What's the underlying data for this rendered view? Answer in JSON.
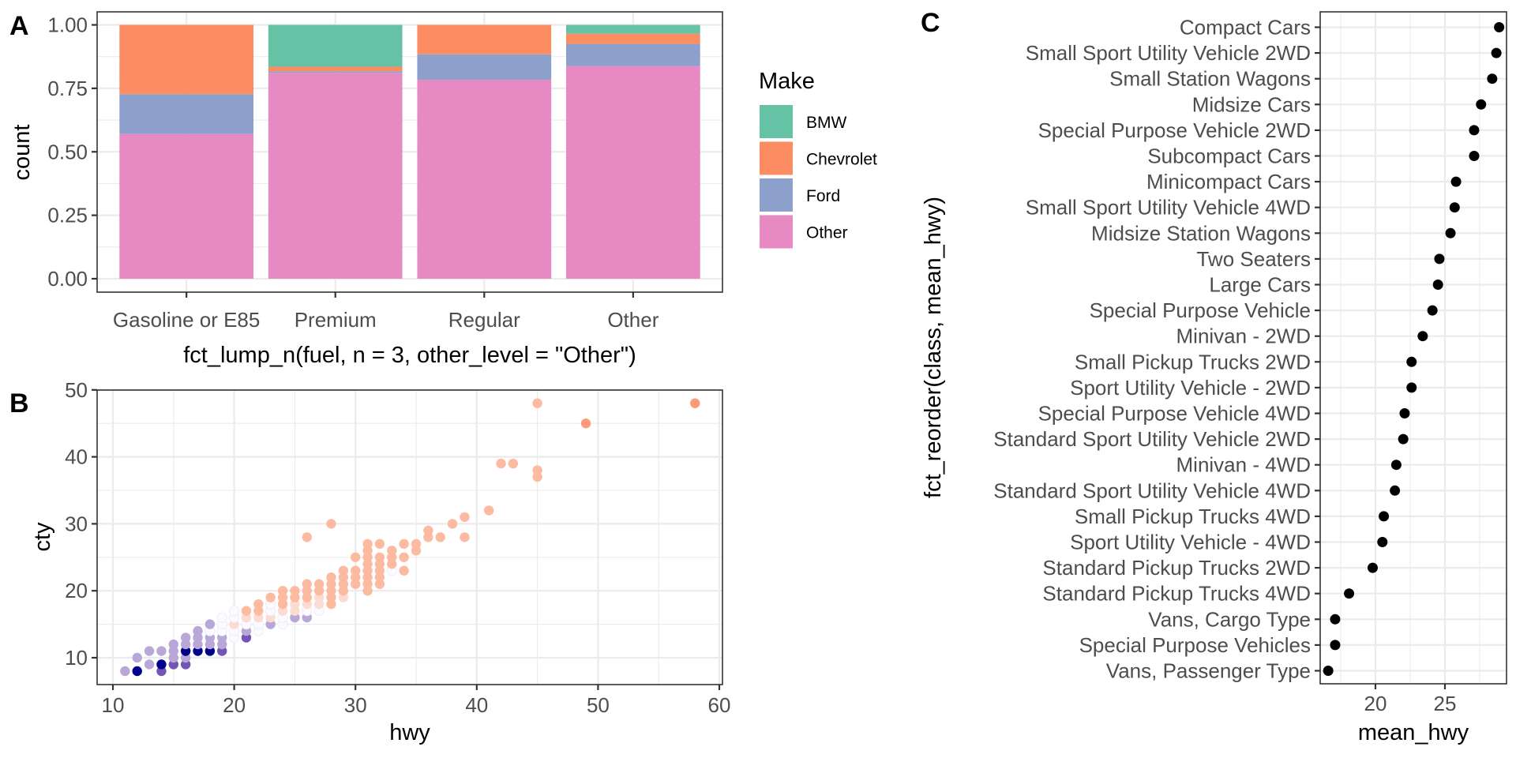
{
  "chart_data": [
    {
      "panel": "A",
      "type": "bar",
      "stacked": "fill",
      "title": "",
      "xlabel": "fct_lump_n(fuel, n = 3, other_level = \"Other\")",
      "ylabel": "count",
      "ylim": [
        0,
        1
      ],
      "yticks": [
        "0.00",
        "0.25",
        "0.50",
        "0.75",
        "1.00"
      ],
      "ytick_values": [
        0,
        0.25,
        0.5,
        0.75,
        1.0
      ],
      "categories": [
        "Gasoline or E85",
        "Premium",
        "Regular",
        "Other"
      ],
      "grid": true,
      "legend": {
        "title": "Make",
        "position": "right",
        "entries": [
          {
            "name": "BMW",
            "color": "#66c2a5"
          },
          {
            "name": "Chevrolet",
            "color": "#fc8d62"
          },
          {
            "name": "Ford",
            "color": "#8da0cb"
          },
          {
            "name": "Other",
            "color": "#e78ac3"
          }
        ]
      },
      "series": [
        {
          "name": "BMW",
          "values": [
            0.0,
            0.165,
            0.0,
            0.035
          ]
        },
        {
          "name": "Chevrolet",
          "values": [
            0.273,
            0.018,
            0.116,
            0.04
          ]
        },
        {
          "name": "Ford",
          "values": [
            0.157,
            0.006,
            0.1,
            0.087
          ]
        },
        {
          "name": "Other",
          "values": [
            0.57,
            0.811,
            0.784,
            0.838
          ]
        }
      ]
    },
    {
      "panel": "B",
      "type": "scatter",
      "xlabel": "hwy",
      "ylabel": "cty",
      "xlim": [
        9,
        60.5
      ],
      "ylim": [
        6,
        50
      ],
      "xticks": [
        10,
        20,
        30,
        40,
        50,
        60
      ],
      "yticks": [
        10,
        20,
        30,
        40,
        50
      ],
      "grid": true,
      "color_legend": "none",
      "points": [
        {
          "x": 11,
          "y": 8,
          "c": "#b9a7d8"
        },
        {
          "x": 12,
          "y": 8,
          "c": "#00008b"
        },
        {
          "x": 12,
          "y": 10,
          "c": "#b9a7d8"
        },
        {
          "x": 13,
          "y": 9,
          "c": "#b9a7d8"
        },
        {
          "x": 13,
          "y": 11,
          "c": "#b9a7d8"
        },
        {
          "x": 14,
          "y": 8,
          "c": "#7355b5"
        },
        {
          "x": 14,
          "y": 9,
          "c": "#00008b"
        },
        {
          "x": 14,
          "y": 11,
          "c": "#b9a7d8"
        },
        {
          "x": 15,
          "y": 9,
          "c": "#7355b5"
        },
        {
          "x": 15,
          "y": 10,
          "c": "#b9a7d8"
        },
        {
          "x": 15,
          "y": 11,
          "c": "#b9a7d8"
        },
        {
          "x": 15,
          "y": 12,
          "c": "#b9a7d8"
        },
        {
          "x": 16,
          "y": 9,
          "c": "#7355b5"
        },
        {
          "x": 16,
          "y": 10,
          "c": "#b9a7d8"
        },
        {
          "x": 16,
          "y": 11,
          "c": "#00008b"
        },
        {
          "x": 16,
          "y": 12,
          "c": "#b9a7d8"
        },
        {
          "x": 16,
          "y": 13,
          "c": "#b9a7d8"
        },
        {
          "x": 17,
          "y": 11,
          "c": "#00008b"
        },
        {
          "x": 17,
          "y": 12,
          "c": "#b9a7d8"
        },
        {
          "x": 17,
          "y": 13,
          "c": "#b9a7d8"
        },
        {
          "x": 17,
          "y": 14,
          "c": "#b9a7d8"
        },
        {
          "x": 18,
          "y": 11,
          "c": "#00008b"
        },
        {
          "x": 18,
          "y": 12,
          "c": "#b9a7d8"
        },
        {
          "x": 18,
          "y": 13,
          "c": "#b9a7d8"
        },
        {
          "x": 18,
          "y": 14,
          "c": "#fbfaff"
        },
        {
          "x": 18,
          "y": 15,
          "c": "#b9a7d8"
        },
        {
          "x": 19,
          "y": 11,
          "c": "#7355b5"
        },
        {
          "x": 19,
          "y": 12,
          "c": "#b9a7d8"
        },
        {
          "x": 19,
          "y": 13,
          "c": "#b9a7d8"
        },
        {
          "x": 19,
          "y": 14,
          "c": "#fbfaff"
        },
        {
          "x": 19,
          "y": 15,
          "c": "#fbfaff"
        },
        {
          "x": 19,
          "y": 16,
          "c": "#fbfaff"
        },
        {
          "x": 20,
          "y": 13,
          "c": "#fbfaff"
        },
        {
          "x": 20,
          "y": 14,
          "c": "#fbfaff"
        },
        {
          "x": 20,
          "y": 15,
          "c": "#fcdcd2"
        },
        {
          "x": 20,
          "y": 16,
          "c": "#fbfaff"
        },
        {
          "x": 20,
          "y": 17,
          "c": "#fbfaff"
        },
        {
          "x": 21,
          "y": 13,
          "c": "#7355b5"
        },
        {
          "x": 21,
          "y": 14,
          "c": "#b9a7d8"
        },
        {
          "x": 21,
          "y": 15,
          "c": "#fbfaff"
        },
        {
          "x": 21,
          "y": 16,
          "c": "#fcdcd2"
        },
        {
          "x": 21,
          "y": 17,
          "c": "#fcbba1"
        },
        {
          "x": 22,
          "y": 14,
          "c": "#fbfaff"
        },
        {
          "x": 22,
          "y": 15,
          "c": "#fbfaff"
        },
        {
          "x": 22,
          "y": 16,
          "c": "#fcdcd2"
        },
        {
          "x": 22,
          "y": 17,
          "c": "#fcbba1"
        },
        {
          "x": 22,
          "y": 18,
          "c": "#fcbba1"
        },
        {
          "x": 23,
          "y": 15,
          "c": "#b9a7d8"
        },
        {
          "x": 23,
          "y": 16,
          "c": "#fcdcd2"
        },
        {
          "x": 23,
          "y": 17,
          "c": "#fbfaff"
        },
        {
          "x": 23,
          "y": 18,
          "c": "#fbfaff"
        },
        {
          "x": 23,
          "y": 19,
          "c": "#fcbba1"
        },
        {
          "x": 24,
          "y": 15,
          "c": "#fbfaff"
        },
        {
          "x": 24,
          "y": 16,
          "c": "#fbfaff"
        },
        {
          "x": 24,
          "y": 17,
          "c": "#fcdcd2"
        },
        {
          "x": 24,
          "y": 18,
          "c": "#fcbba1"
        },
        {
          "x": 24,
          "y": 19,
          "c": "#fcbba1"
        },
        {
          "x": 24,
          "y": 20,
          "c": "#fcbba1"
        },
        {
          "x": 25,
          "y": 16,
          "c": "#b9a7d8"
        },
        {
          "x": 25,
          "y": 17,
          "c": "#fcdcd2"
        },
        {
          "x": 25,
          "y": 18,
          "c": "#fcdcd2"
        },
        {
          "x": 25,
          "y": 19,
          "c": "#fcbba1"
        },
        {
          "x": 25,
          "y": 20,
          "c": "#fcbba1"
        },
        {
          "x": 26,
          "y": 16,
          "c": "#b9a7d8"
        },
        {
          "x": 26,
          "y": 17,
          "c": "#fbfaff"
        },
        {
          "x": 26,
          "y": 18,
          "c": "#fcdcd2"
        },
        {
          "x": 26,
          "y": 19,
          "c": "#fcbba1"
        },
        {
          "x": 26,
          "y": 20,
          "c": "#fcbba1"
        },
        {
          "x": 26,
          "y": 21,
          "c": "#fcbba1"
        },
        {
          "x": 26,
          "y": 28,
          "c": "#fcbba1"
        },
        {
          "x": 27,
          "y": 17,
          "c": "#fbfaff"
        },
        {
          "x": 27,
          "y": 18,
          "c": "#fcdcd2"
        },
        {
          "x": 27,
          "y": 19,
          "c": "#fcdcd2"
        },
        {
          "x": 27,
          "y": 20,
          "c": "#fcbba1"
        },
        {
          "x": 27,
          "y": 21,
          "c": "#fcbba1"
        },
        {
          "x": 28,
          "y": 18,
          "c": "#fcbba1"
        },
        {
          "x": 28,
          "y": 19,
          "c": "#fcbba1"
        },
        {
          "x": 28,
          "y": 20,
          "c": "#fcbba1"
        },
        {
          "x": 28,
          "y": 21,
          "c": "#fcbba1"
        },
        {
          "x": 28,
          "y": 22,
          "c": "#fcbba1"
        },
        {
          "x": 28,
          "y": 30,
          "c": "#fcbba1"
        },
        {
          "x": 29,
          "y": 19,
          "c": "#fcdcd2"
        },
        {
          "x": 29,
          "y": 20,
          "c": "#fcbba1"
        },
        {
          "x": 29,
          "y": 21,
          "c": "#fcbba1"
        },
        {
          "x": 29,
          "y": 22,
          "c": "#fcbba1"
        },
        {
          "x": 29,
          "y": 23,
          "c": "#fcbba1"
        },
        {
          "x": 30,
          "y": 21,
          "c": "#fcbba1"
        },
        {
          "x": 30,
          "y": 22,
          "c": "#fcbba1"
        },
        {
          "x": 30,
          "y": 23,
          "c": "#fcbba1"
        },
        {
          "x": 30,
          "y": 25,
          "c": "#fcbba1"
        },
        {
          "x": 31,
          "y": 20,
          "c": "#fcbba1"
        },
        {
          "x": 31,
          "y": 21,
          "c": "#fcbba1"
        },
        {
          "x": 31,
          "y": 22,
          "c": "#fcbba1"
        },
        {
          "x": 31,
          "y": 23,
          "c": "#fcbba1"
        },
        {
          "x": 31,
          "y": 24,
          "c": "#fcbba1"
        },
        {
          "x": 31,
          "y": 25,
          "c": "#fcbba1"
        },
        {
          "x": 31,
          "y": 26,
          "c": "#fcbba1"
        },
        {
          "x": 31,
          "y": 27,
          "c": "#fcbba1"
        },
        {
          "x": 32,
          "y": 21,
          "c": "#fcbba1"
        },
        {
          "x": 32,
          "y": 22,
          "c": "#fcbba1"
        },
        {
          "x": 32,
          "y": 23,
          "c": "#fcbba1"
        },
        {
          "x": 32,
          "y": 24,
          "c": "#fcbba1"
        },
        {
          "x": 32,
          "y": 25,
          "c": "#fcbba1"
        },
        {
          "x": 32,
          "y": 27,
          "c": "#fcbba1"
        },
        {
          "x": 33,
          "y": 23,
          "c": "#fbfaff"
        },
        {
          "x": 33,
          "y": 24,
          "c": "#fcbba1"
        },
        {
          "x": 33,
          "y": 25,
          "c": "#fcbba1"
        },
        {
          "x": 33,
          "y": 26,
          "c": "#fcbba1"
        },
        {
          "x": 34,
          "y": 23,
          "c": "#fcbba1"
        },
        {
          "x": 34,
          "y": 25,
          "c": "#fcbba1"
        },
        {
          "x": 34,
          "y": 27,
          "c": "#fcbba1"
        },
        {
          "x": 35,
          "y": 26,
          "c": "#fcbba1"
        },
        {
          "x": 35,
          "y": 27,
          "c": "#fcbba1"
        },
        {
          "x": 36,
          "y": 28,
          "c": "#fcbba1"
        },
        {
          "x": 36,
          "y": 29,
          "c": "#fcbba1"
        },
        {
          "x": 37,
          "y": 28,
          "c": "#fcbba1"
        },
        {
          "x": 38,
          "y": 30,
          "c": "#fcbba1"
        },
        {
          "x": 39,
          "y": 28,
          "c": "#fcbba1"
        },
        {
          "x": 39,
          "y": 31,
          "c": "#fcbba1"
        },
        {
          "x": 41,
          "y": 32,
          "c": "#fcbba1"
        },
        {
          "x": 42,
          "y": 39,
          "c": "#fcbba1"
        },
        {
          "x": 43,
          "y": 39,
          "c": "#fcbba1"
        },
        {
          "x": 45,
          "y": 37,
          "c": "#fcbba1"
        },
        {
          "x": 45,
          "y": 38,
          "c": "#fcbba1"
        },
        {
          "x": 45,
          "y": 48,
          "c": "#fcbba1"
        },
        {
          "x": 49,
          "y": 45,
          "c": "#fc9b7c"
        },
        {
          "x": 58,
          "y": 48,
          "c": "#fc9b7c"
        }
      ]
    },
    {
      "panel": "C",
      "type": "scatter",
      "subtype": "dot-plot",
      "xlabel": "mean_hwy",
      "ylabel": "fct_reorder(class, mean_hwy)",
      "xlim": [
        16.0,
        29.5
      ],
      "xticks": [
        20,
        25
      ],
      "grid": true,
      "categories": [
        "Compact Cars",
        "Small Sport Utility Vehicle 2WD",
        "Small Station Wagons",
        "Midsize Cars",
        "Special Purpose Vehicle 2WD",
        "Subcompact Cars",
        "Minicompact Cars",
        "Small Sport Utility Vehicle 4WD",
        "Midsize Station Wagons",
        "Two Seaters",
        "Large Cars",
        "Special Purpose Vehicle",
        "Minivan - 2WD",
        "Small Pickup Trucks 2WD",
        "Sport Utility Vehicle - 2WD",
        "Special Purpose Vehicle 4WD",
        "Standard Sport Utility Vehicle 2WD",
        "Minivan - 4WD",
        "Standard Sport Utility Vehicle 4WD",
        "Small Pickup Trucks 4WD",
        "Sport Utility Vehicle - 4WD",
        "Standard Pickup Trucks 2WD",
        "Standard Pickup Trucks 4WD",
        "Vans, Cargo Type",
        "Special Purpose Vehicles",
        "Vans, Passenger Type"
      ],
      "values": [
        28.9,
        28.7,
        28.4,
        27.6,
        27.1,
        27.1,
        25.8,
        25.7,
        25.4,
        24.6,
        24.5,
        24.1,
        23.4,
        22.6,
        22.6,
        22.1,
        22.0,
        21.5,
        21.4,
        20.6,
        20.5,
        19.8,
        18.1,
        17.1,
        17.1,
        16.6
      ]
    }
  ],
  "panel_tags": [
    "A",
    "B",
    "C"
  ]
}
